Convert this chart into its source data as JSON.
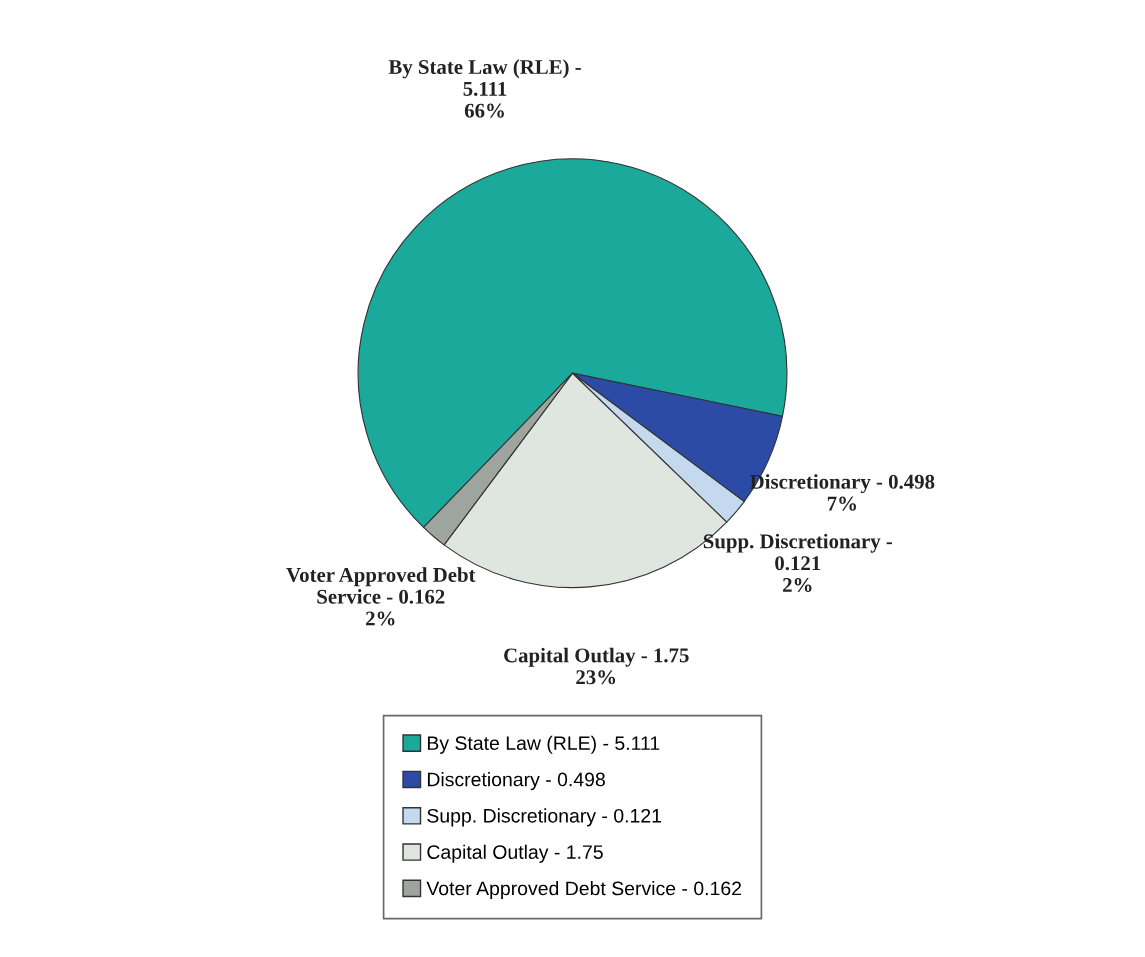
{
  "chart_data": {
    "type": "pie",
    "categories": [
      "By State Law (RLE) - 5.111",
      "Discretionary - 0.498",
      "Supp. Discretionary - 0.121",
      "Capital Outlay - 1.75",
      "Voter Approved Debt Service - 0.162"
    ],
    "values": [
      66,
      7,
      2,
      23,
      2
    ],
    "value_labels": [
      "66%",
      "7%",
      "2%",
      "23%",
      "2%"
    ],
    "colors": [
      "#1aa99b",
      "#2b4ba6",
      "#c4d8ee",
      "#dfe6df",
      "#9ea49e"
    ],
    "legend": "bottom"
  }
}
